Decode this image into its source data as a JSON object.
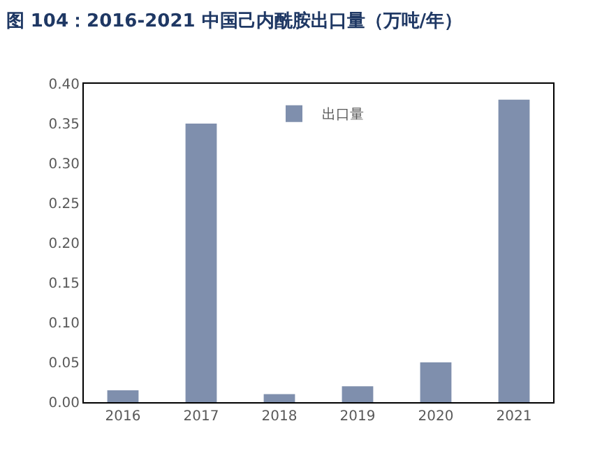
{
  "chart_data": {
    "type": "bar",
    "title": "图 104：2016-2021 中国己内酰胺出口量（万吨/年）",
    "categories": [
      "2016",
      "2017",
      "2018",
      "2019",
      "2020",
      "2021"
    ],
    "series": [
      {
        "name": "出口量",
        "color": "#7f8fad",
        "values": [
          0.015,
          0.35,
          0.01,
          0.02,
          0.05,
          0.38
        ]
      }
    ],
    "ylim": [
      0,
      0.4
    ],
    "yticks": [
      {
        "value": 0,
        "label": "0.00"
      },
      {
        "value": 0.05,
        "label": "0.05"
      },
      {
        "value": 0.1,
        "label": "0.10"
      },
      {
        "value": 0.15,
        "label": "0.15"
      },
      {
        "value": 0.2,
        "label": "0.20"
      },
      {
        "value": 0.25,
        "label": "0.25"
      },
      {
        "value": 0.3,
        "label": "0.30"
      },
      {
        "value": 0.35,
        "label": "0.35"
      },
      {
        "value": 0.4,
        "label": "0.40"
      }
    ],
    "legend": "top"
  }
}
